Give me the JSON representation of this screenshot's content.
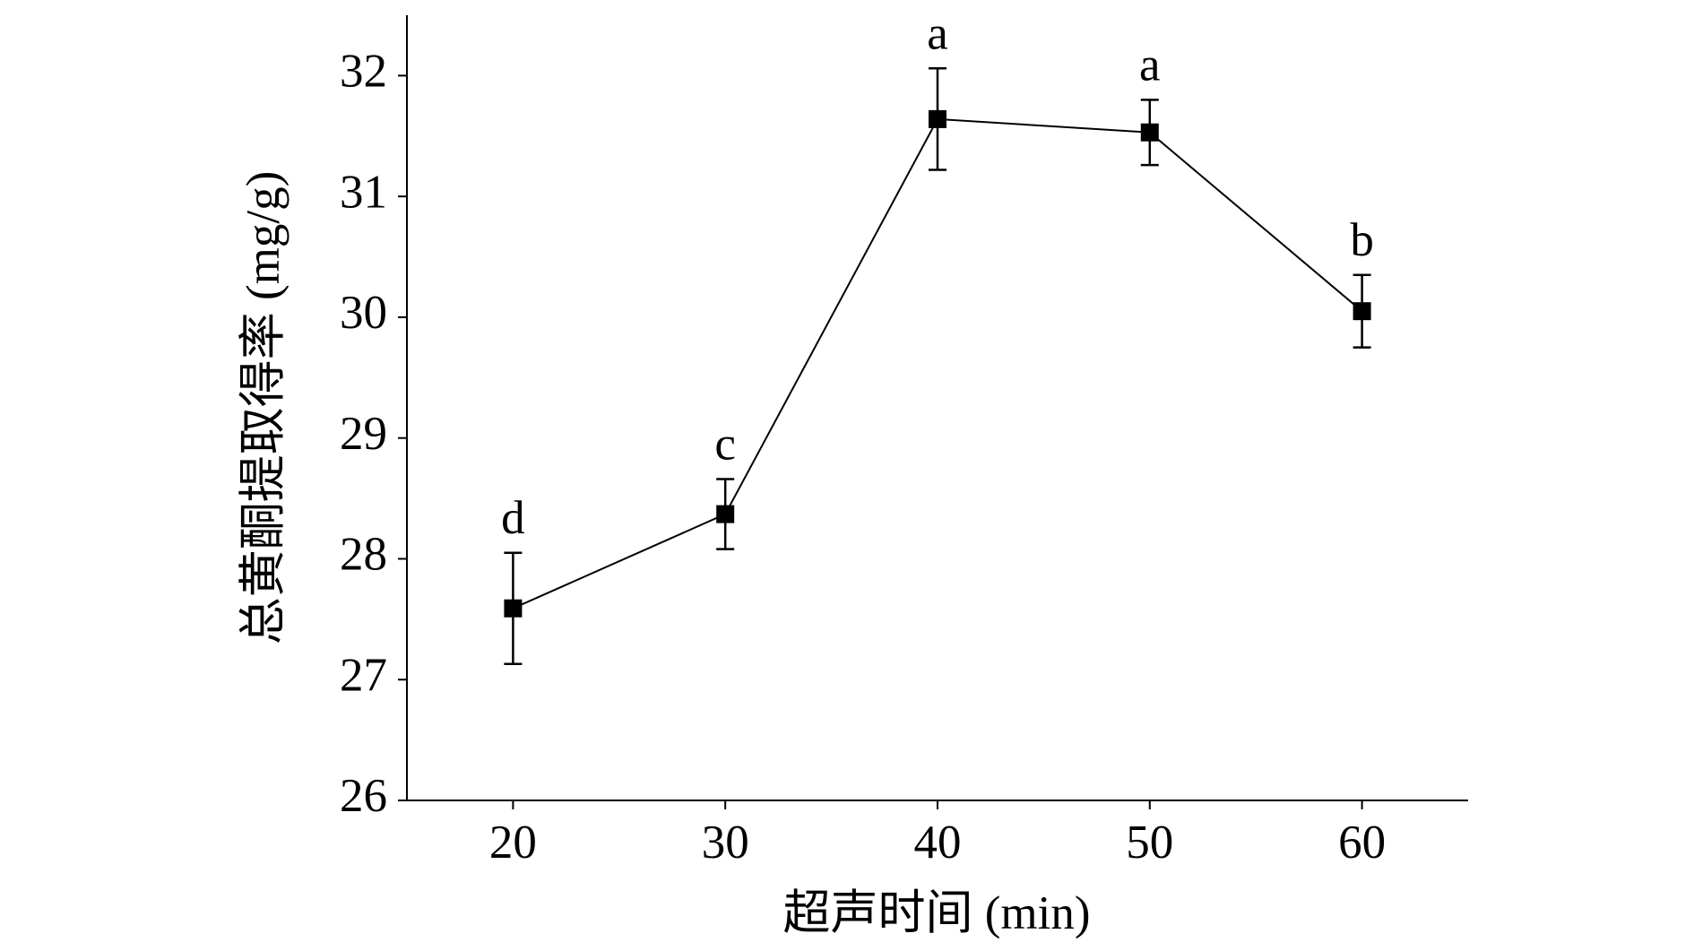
{
  "chart_data": {
    "type": "line",
    "x_label": "超声时间 (min)",
    "y_label": "总黄酮提取得率 (mg/g)",
    "x": [
      20,
      30,
      40,
      50,
      60
    ],
    "values": [
      27.59,
      28.37,
      31.64,
      31.53,
      30.05
    ],
    "errors": [
      0.46,
      0.29,
      0.42,
      0.27,
      0.3
    ],
    "annotations": [
      "d",
      "c",
      "a",
      "a",
      "b"
    ],
    "color": "#000000",
    "xlim": [
      15,
      65
    ],
    "xticks": [
      20,
      30,
      40,
      50,
      60
    ],
    "ylim": [
      26,
      32.5
    ],
    "yticks": [
      26,
      27,
      28,
      29,
      30,
      31,
      32
    ]
  }
}
